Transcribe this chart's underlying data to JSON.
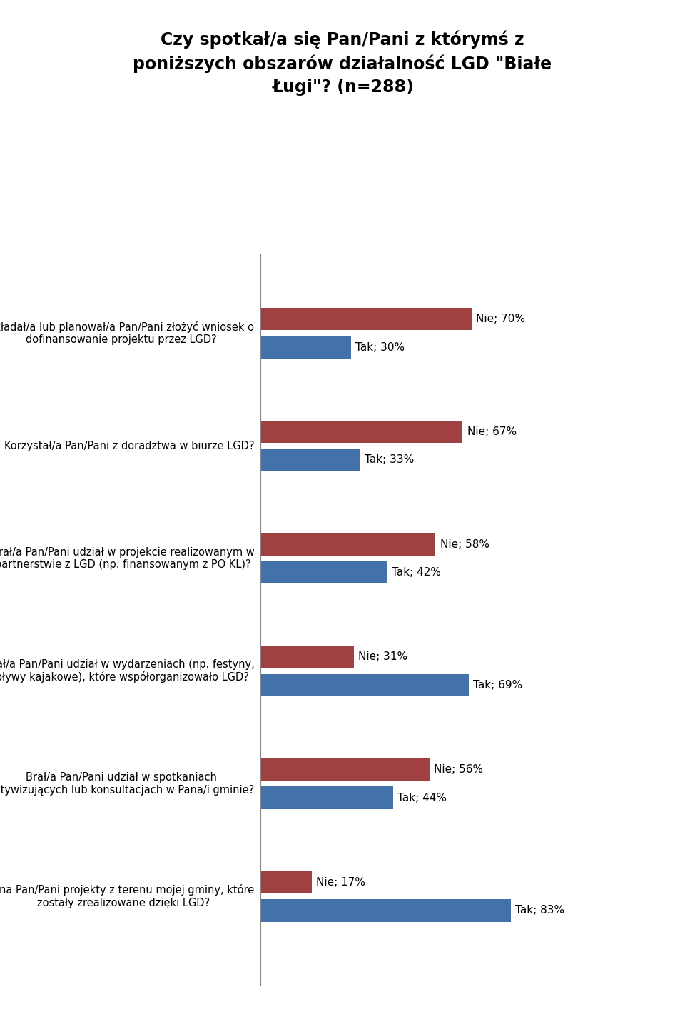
{
  "title": "Czy spotkał/a się Pan/Pani z którymś z\nponiższych obszarów działalność LGD \"Białe\nŁugi\"? (n=288)",
  "title_fontsize": 17,
  "bar_color_nie": "#a04040",
  "bar_color_tak": "#4472a8",
  "label_fontsize": 11,
  "question_fontsize": 10.5,
  "questions": [
    "Składał/a lub planował/a Pan/Pani złożyć wniosek o\ndofinansowanie projektu przez LGD?",
    "Korzystał/a Pan/Pani z doradztwa w biurze LGD?",
    "Brał/a Pan/Pani udział w projekcie realizowanym w\npartnerstwie z LGD (np. finansowanym z PO KL)?",
    "Brał/a Pan/Pani udział w wydarzeniach (np. festyny,\nspływy kajakowe), które współorganizowało LGD?",
    "Brał/a Pan/Pani udział w spotkaniach\naktywizujących lub konsultacjach w Pana/i gminie?",
    "Zna Pan/Pani projekty z terenu mojej gminy, które\nzostały zrealizowane dzięki LGD?"
  ],
  "nie_values": [
    70,
    67,
    58,
    31,
    56,
    17
  ],
  "tak_values": [
    30,
    33,
    42,
    69,
    44,
    83
  ],
  "nie_labels": [
    "Nie; 70%",
    "Nie; 67%",
    "Nie; 58%",
    "Nie; 31%",
    "Nie; 56%",
    "Nie; 17%"
  ],
  "tak_labels": [
    "Tak; 30%",
    "Tak; 33%",
    "Tak; 42%",
    "Tak; 69%",
    "Tak; 44%",
    "Tak; 83%"
  ],
  "max_val": 100,
  "background_color": "#ffffff"
}
